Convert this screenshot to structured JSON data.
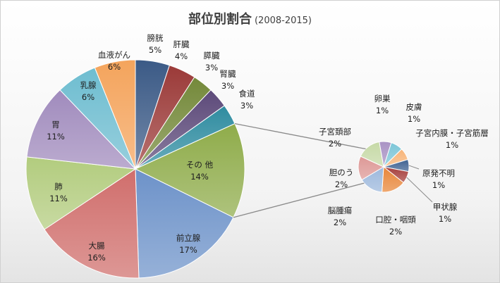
{
  "chart_data": {
    "type": "pie",
    "subtype": "pie-of-pie",
    "title": "部位別割合",
    "subtitle": "(2008-2015)",
    "main_pie": {
      "slices": [
        {
          "label": "膀胱",
          "value": 5,
          "display": "5%",
          "color": "#3b5a86"
        },
        {
          "label": "肝臓",
          "value": 4,
          "display": "4%",
          "color": "#9b3a38"
        },
        {
          "label": "膵臓",
          "value": 3,
          "display": "3%",
          "color": "#74893a"
        },
        {
          "label": "腎臓",
          "value": 3,
          "display": "3%",
          "color": "#5d4a7a"
        },
        {
          "label": "食道",
          "value": 3,
          "display": "3%",
          "color": "#2f8ca0"
        },
        {
          "label": "その 他",
          "value": 14,
          "display": "14%",
          "color": "#8fac4a",
          "is_other": true
        },
        {
          "label": "前立腺",
          "value": 17,
          "display": "17%",
          "color": "#6d92c9"
        },
        {
          "label": "大腸",
          "value": 16,
          "display": "16%",
          "color": "#d06e6c"
        },
        {
          "label": "肺",
          "value": 11,
          "display": "11%",
          "color": "#b2cc7e"
        },
        {
          "label": "胃",
          "value": 11,
          "display": "11%",
          "color": "#a08bbd"
        },
        {
          "label": "乳腺",
          "value": 6,
          "display": "6%",
          "color": "#6ebdd0"
        },
        {
          "label": "血液がん",
          "value": 6,
          "display": "6%",
          "color": "#f4a45c"
        }
      ]
    },
    "secondary_pie": {
      "slices": [
        {
          "label": "卵巣",
          "value": 1,
          "display": "1%",
          "color": "#a993c4"
        },
        {
          "label": "皮膚",
          "value": 1,
          "display": "1%",
          "color": "#7dc6d8"
        },
        {
          "label": "子宮内膜・子宮筋層",
          "value": 1,
          "display": "1%",
          "color": "#f7b478"
        },
        {
          "label": "原発不明",
          "value": 1,
          "display": "1%",
          "color": "#3f6291"
        },
        {
          "label": "甲状腺",
          "value": 1,
          "display": "1%",
          "color": "#a63f3d"
        },
        {
          "label": "口腔・咽頭",
          "value": 2,
          "display": "2%",
          "color": "#e8863a"
        },
        {
          "label": "脳腫瘍",
          "value": 2,
          "display": "2%",
          "color": "#9db8dc"
        },
        {
          "label": "胆のう",
          "value": 2,
          "display": "2%",
          "color": "#dd9896"
        },
        {
          "label": "子宮頚部",
          "value": 2,
          "display": "2%",
          "color": "#c6d9a6"
        }
      ]
    },
    "legend": "none",
    "data_labels": "category and percent"
  }
}
